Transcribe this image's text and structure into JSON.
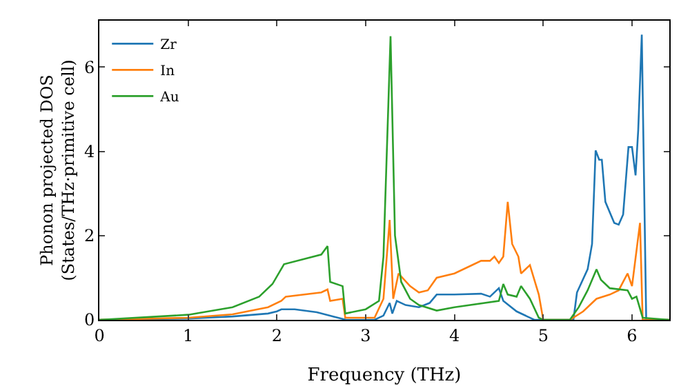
{
  "chart_data": {
    "type": "line",
    "xlabel": "Frequency (THz)",
    "ylabel": "Phonon projected DOS\n(States/THz·primitive cell)",
    "xlim": [
      0,
      6.42
    ],
    "ylim": [
      0,
      7.1
    ],
    "xticks": [
      0,
      1,
      2,
      3,
      4,
      5,
      6
    ],
    "yticks": [
      0,
      2,
      4,
      6
    ],
    "grid": false,
    "legend": "top left",
    "marker": "none",
    "line_style": "solid",
    "series": [
      {
        "name": "Zr",
        "color": "#1f77b4",
        "x": [
          0,
          1,
          1.5,
          1.9,
          2.0,
          2.05,
          2.2,
          2.45,
          2.65,
          2.78,
          3.1,
          3.2,
          3.27,
          3.3,
          3.35,
          3.45,
          3.6,
          3.72,
          3.8,
          4.0,
          4.3,
          4.4,
          4.5,
          4.55,
          4.7,
          4.9,
          5.34,
          5.38,
          5.5,
          5.55,
          5.59,
          5.63,
          5.66,
          5.7,
          5.8,
          5.85,
          5.9,
          5.96,
          6.0,
          6.04,
          6.07,
          6.11,
          6.16,
          6.42
        ],
        "values": [
          0,
          0.03,
          0.08,
          0.15,
          0.2,
          0.25,
          0.25,
          0.18,
          0.07,
          0,
          0,
          0.1,
          0.4,
          0.15,
          0.45,
          0.35,
          0.3,
          0.4,
          0.6,
          0.6,
          0.62,
          0.55,
          0.75,
          0.45,
          0.2,
          0,
          0,
          0.65,
          1.2,
          1.8,
          4.02,
          3.8,
          3.8,
          2.8,
          2.3,
          2.26,
          2.5,
          4.1,
          4.1,
          3.43,
          4.5,
          6.77,
          0,
          0
        ]
      },
      {
        "name": "In",
        "color": "#ff7f0e",
        "x": [
          0,
          1,
          1.5,
          1.9,
          2.05,
          2.1,
          2.5,
          2.57,
          2.6,
          2.74,
          2.77,
          3.1,
          3.2,
          3.27,
          3.31,
          3.37,
          3.5,
          3.6,
          3.7,
          3.8,
          4.0,
          4.2,
          4.3,
          4.4,
          4.45,
          4.5,
          4.55,
          4.6,
          4.65,
          4.72,
          4.75,
          4.85,
          4.95,
          5.0,
          5.3,
          5.45,
          5.6,
          5.75,
          5.85,
          5.9,
          5.95,
          6.0,
          6.09,
          6.12,
          6.42
        ],
        "values": [
          0,
          0.05,
          0.13,
          0.3,
          0.45,
          0.55,
          0.65,
          0.72,
          0.45,
          0.5,
          0.05,
          0.05,
          0.5,
          2.37,
          0.5,
          1.1,
          0.8,
          0.65,
          0.7,
          1.0,
          1.1,
          1.3,
          1.4,
          1.4,
          1.5,
          1.35,
          1.5,
          2.8,
          1.8,
          1.5,
          1.1,
          1.3,
          0.6,
          0,
          0,
          0.2,
          0.5,
          0.6,
          0.7,
          0.9,
          1.1,
          0.8,
          2.3,
          0,
          0
        ]
      },
      {
        "name": "Au",
        "color": "#2ca02c",
        "x": [
          0,
          1,
          1.5,
          1.8,
          1.95,
          2.08,
          2.5,
          2.57,
          2.6,
          2.74,
          2.77,
          3.0,
          3.15,
          3.2,
          3.28,
          3.33,
          3.4,
          3.5,
          3.6,
          3.8,
          4.0,
          4.5,
          4.55,
          4.6,
          4.7,
          4.75,
          4.85,
          4.95,
          5.0,
          5.3,
          5.4,
          5.5,
          5.6,
          5.65,
          5.75,
          5.95,
          6.0,
          6.05,
          6.12,
          6.42
        ],
        "values": [
          0,
          0.12,
          0.3,
          0.55,
          0.85,
          1.32,
          1.55,
          1.75,
          0.9,
          0.8,
          0.15,
          0.25,
          0.45,
          1.5,
          6.73,
          2.0,
          0.9,
          0.5,
          0.35,
          0.22,
          0.3,
          0.45,
          0.85,
          0.6,
          0.55,
          0.8,
          0.5,
          0.05,
          0,
          0,
          0.3,
          0.7,
          1.2,
          0.95,
          0.75,
          0.7,
          0.5,
          0.55,
          0.05,
          0
        ]
      }
    ]
  }
}
